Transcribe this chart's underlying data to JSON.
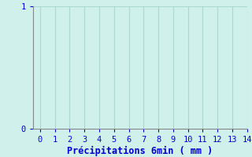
{
  "title": "",
  "xlabel": "Précipitations 6min ( mm )",
  "ylabel": "",
  "xlim": [
    -0.5,
    14
  ],
  "ylim": [
    0,
    1
  ],
  "xticks": [
    0,
    1,
    2,
    3,
    4,
    5,
    6,
    7,
    8,
    9,
    10,
    11,
    12,
    13,
    14
  ],
  "yticks": [
    0,
    1
  ],
  "background_color": "#cff0eb",
  "grid_color": "#aad8d2",
  "axis_color": "#888888",
  "tick_color": "#0000cc",
  "label_color": "#0000cc",
  "xlabel_fontsize": 8.5,
  "tick_fontsize": 7.5
}
